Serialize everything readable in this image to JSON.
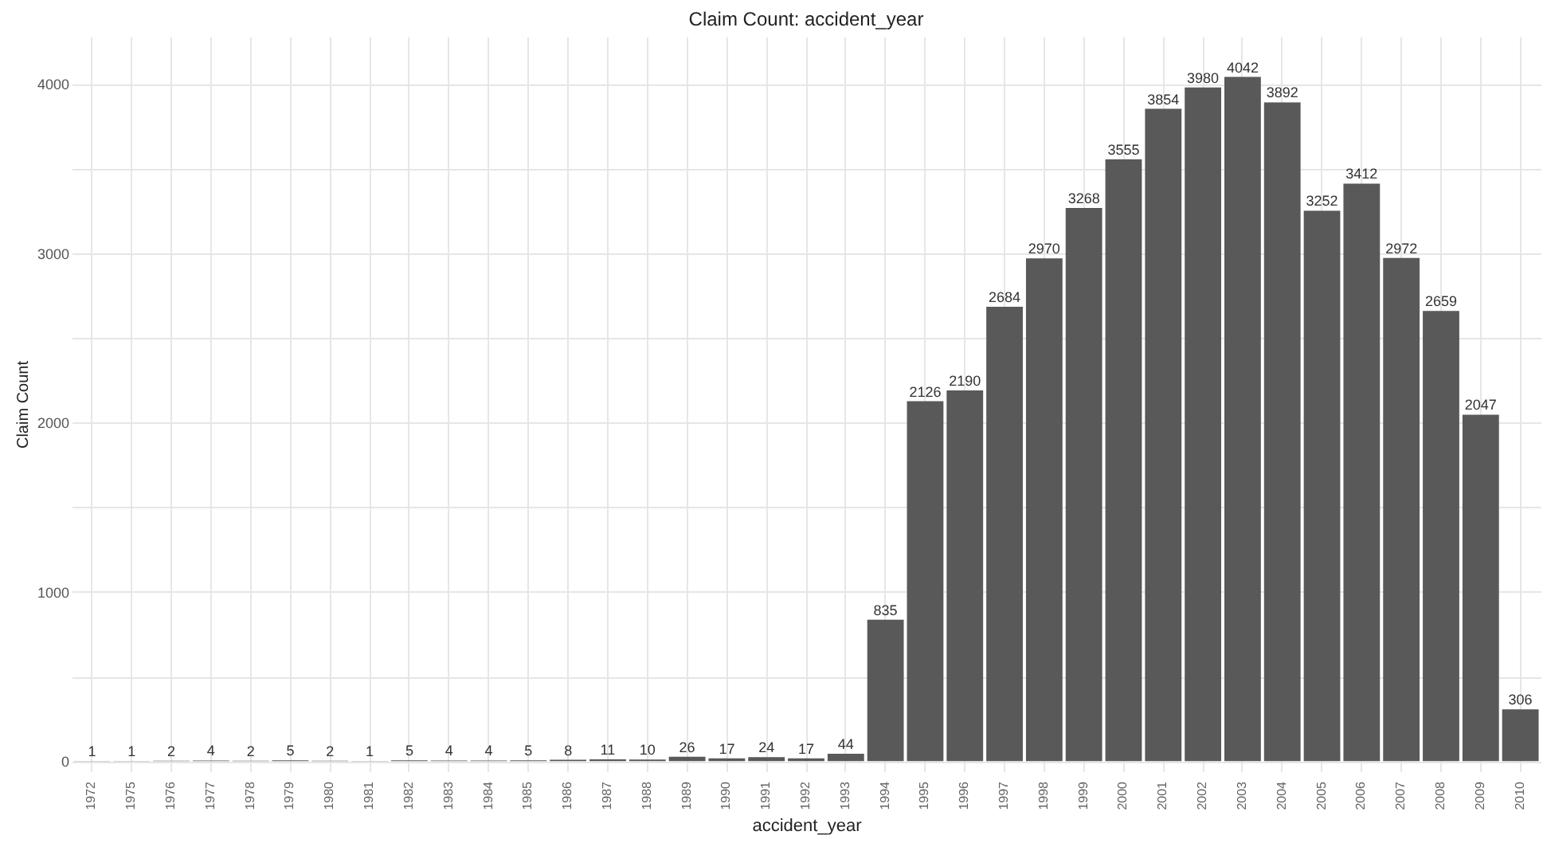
{
  "chart_data": {
    "type": "bar",
    "title": "Claim Count: accident_year",
    "xlabel": "accident_year",
    "ylabel": "Claim Count",
    "categories": [
      "1972",
      "1975",
      "1976",
      "1977",
      "1978",
      "1979",
      "1980",
      "1981",
      "1982",
      "1983",
      "1984",
      "1985",
      "1986",
      "1987",
      "1988",
      "1989",
      "1990",
      "1991",
      "1992",
      "1993",
      "1994",
      "1995",
      "1996",
      "1997",
      "1998",
      "1999",
      "2000",
      "2001",
      "2002",
      "2003",
      "2004",
      "2005",
      "2006",
      "2007",
      "2008",
      "2009",
      "2010"
    ],
    "values": [
      1,
      1,
      2,
      4,
      2,
      5,
      2,
      1,
      5,
      4,
      4,
      5,
      8,
      11,
      10,
      26,
      17,
      24,
      17,
      44,
      835,
      2126,
      2190,
      2684,
      2970,
      3268,
      3555,
      3854,
      3980,
      4042,
      3892,
      3252,
      3412,
      2972,
      2659,
      2047,
      306
    ],
    "color": "#595959",
    "ylim": [
      -60,
      4280
    ],
    "yticks": [
      0,
      {
        "value": 500,
        "label": null
      },
      1000,
      {
        "value": 1500,
        "label": null
      },
      2000,
      {
        "value": 2500,
        "label": null
      },
      3000,
      {
        "value": 3500,
        "label": null
      },
      4000
    ],
    "grid": true,
    "data_labels": true
  }
}
